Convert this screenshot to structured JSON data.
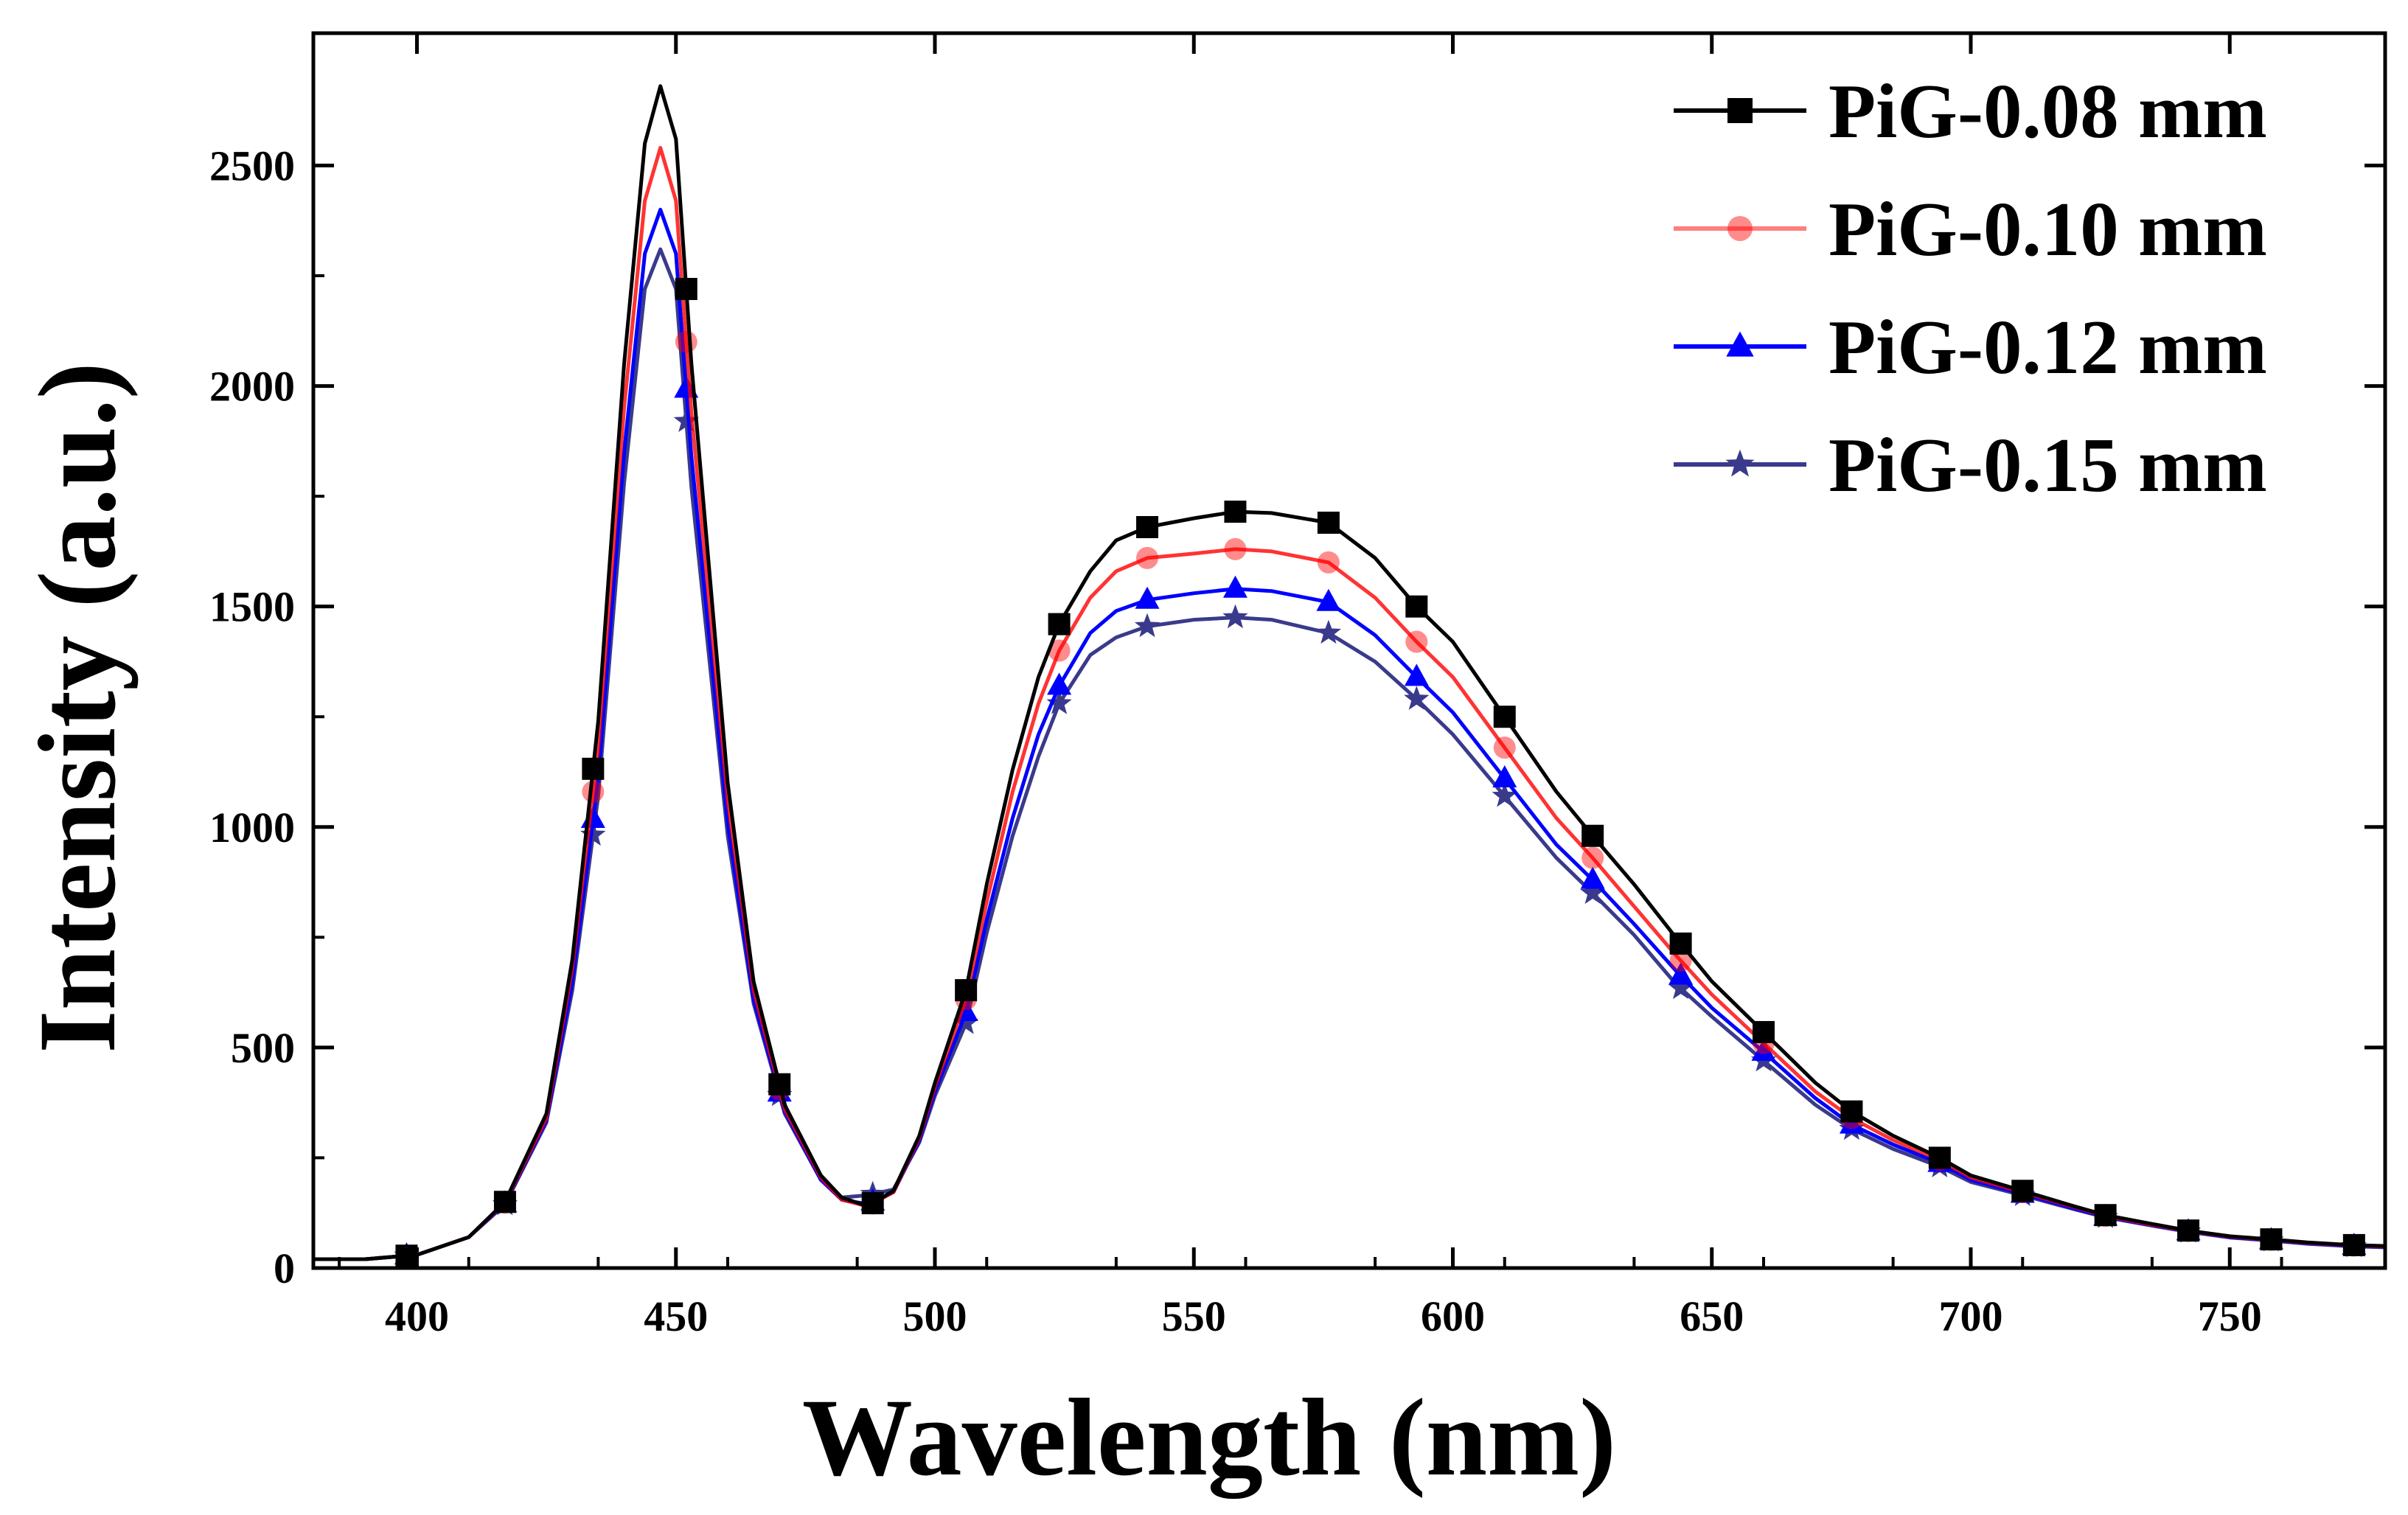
{
  "chart_data": {
    "type": "line",
    "title": "",
    "xlabel": "Wavelength (nm)",
    "ylabel": "Intensity (a.u.)",
    "xlim": [
      380,
      780
    ],
    "ylim": [
      0,
      2800
    ],
    "xticks": [
      400,
      450,
      500,
      550,
      600,
      650,
      700,
      750
    ],
    "yticks": [
      0,
      500,
      1000,
      1500,
      2000,
      2500
    ],
    "legend_position": "top-right",
    "series": [
      {
        "name": "PiG-0.08 mm",
        "color": "#000000",
        "marker": "square",
        "x": [
          380,
          390,
          400,
          410,
          417,
          425,
          430,
          435,
          440,
          444,
          447,
          450,
          453,
          460,
          465,
          471,
          478,
          482,
          487,
          492,
          497,
          500,
          506,
          510,
          515,
          520,
          524,
          530,
          535,
          541,
          550,
          558,
          565,
          576,
          585,
          593,
          600,
          610,
          620,
          627,
          635,
          643,
          650,
          660,
          670,
          677,
          685,
          694,
          700,
          710,
          720,
          726,
          735,
          742,
          750,
          758,
          765,
          774,
          780
        ],
        "y": [
          20,
          20,
          30,
          70,
          150,
          350,
          700,
          1240,
          2050,
          2550,
          2680,
          2560,
          2050,
          1100,
          650,
          370,
          210,
          160,
          140,
          175,
          300,
          420,
          630,
          870,
          1130,
          1340,
          1460,
          1580,
          1650,
          1680,
          1700,
          1715,
          1712,
          1690,
          1610,
          1500,
          1420,
          1250,
          1080,
          980,
          870,
          750,
          650,
          535,
          420,
          355,
          300,
          250,
          210,
          175,
          140,
          120,
          100,
          85,
          72,
          65,
          58,
          52,
          50
        ]
      },
      {
        "name": "PiG-0.10 mm",
        "color": "#ff0000",
        "marker": "circle",
        "x": [
          380,
          390,
          400,
          410,
          417,
          425,
          430,
          435,
          440,
          444,
          447,
          450,
          453,
          460,
          465,
          471,
          478,
          482,
          487,
          492,
          497,
          500,
          506,
          510,
          515,
          520,
          524,
          530,
          535,
          541,
          550,
          558,
          565,
          576,
          585,
          593,
          600,
          610,
          620,
          627,
          635,
          643,
          650,
          660,
          670,
          677,
          685,
          694,
          700,
          710,
          720,
          726,
          735,
          742,
          750,
          758,
          765,
          774,
          780
        ],
        "y": [
          20,
          20,
          30,
          70,
          148,
          340,
          680,
          1180,
          1950,
          2420,
          2540,
          2420,
          1940,
          1060,
          630,
          360,
          205,
          155,
          140,
          172,
          295,
          410,
          610,
          830,
          1080,
          1280,
          1400,
          1520,
          1580,
          1610,
          1620,
          1630,
          1625,
          1600,
          1520,
          1420,
          1340,
          1180,
          1020,
          930,
          820,
          710,
          620,
          510,
          400,
          340,
          290,
          245,
          205,
          172,
          138,
          118,
          98,
          84,
          71,
          64,
          57,
          51,
          49
        ]
      },
      {
        "name": "PiG-0.12 mm",
        "color": "#0000ff",
        "marker": "triangle",
        "x": [
          380,
          390,
          400,
          410,
          417,
          425,
          430,
          435,
          440,
          444,
          447,
          450,
          453,
          460,
          465,
          471,
          478,
          482,
          487,
          492,
          497,
          500,
          506,
          510,
          515,
          520,
          524,
          530,
          535,
          541,
          550,
          558,
          565,
          576,
          585,
          593,
          600,
          610,
          620,
          627,
          635,
          643,
          650,
          660,
          670,
          677,
          685,
          694,
          700,
          710,
          720,
          726,
          735,
          742,
          750,
          758,
          765,
          774,
          780
        ],
        "y": [
          20,
          20,
          30,
          70,
          146,
          335,
          650,
          1110,
          1850,
          2300,
          2400,
          2300,
          1840,
          1010,
          610,
          355,
          200,
          155,
          145,
          172,
          290,
          400,
          580,
          790,
          1020,
          1210,
          1320,
          1440,
          1490,
          1515,
          1530,
          1540,
          1535,
          1510,
          1435,
          1340,
          1260,
          1110,
          960,
          880,
          780,
          675,
          590,
          490,
          385,
          325,
          280,
          238,
          200,
          168,
          135,
          116,
          97,
          83,
          70,
          63,
          56,
          50,
          48
        ]
      },
      {
        "name": "PiG-0.15 mm",
        "color": "#3a3a8c",
        "marker": "star",
        "x": [
          380,
          390,
          400,
          410,
          417,
          425,
          430,
          435,
          440,
          444,
          447,
          450,
          453,
          460,
          465,
          471,
          478,
          482,
          487,
          492,
          497,
          500,
          506,
          510,
          515,
          520,
          524,
          530,
          535,
          541,
          550,
          558,
          565,
          576,
          585,
          593,
          600,
          610,
          620,
          627,
          635,
          643,
          650,
          660,
          670,
          677,
          685,
          694,
          700,
          710,
          720,
          726,
          735,
          742,
          750,
          758,
          765,
          774,
          780
        ],
        "y": [
          20,
          20,
          30,
          70,
          144,
          330,
          630,
          1070,
          1780,
          2220,
          2310,
          2220,
          1770,
          980,
          600,
          350,
          200,
          160,
          165,
          178,
          285,
          390,
          555,
          760,
          980,
          1160,
          1280,
          1390,
          1430,
          1455,
          1470,
          1475,
          1470,
          1440,
          1375,
          1290,
          1210,
          1070,
          930,
          850,
          755,
          645,
          570,
          470,
          370,
          315,
          270,
          230,
          195,
          165,
          133,
          115,
          96,
          82,
          69,
          62,
          55,
          49,
          47
        ]
      }
    ],
    "marker_x": [
      398,
      417,
      434,
      452,
      470,
      488,
      506,
      524,
      541,
      558,
      576,
      593,
      610,
      627,
      644,
      660,
      677,
      694,
      710,
      726,
      742,
      758,
      774
    ]
  }
}
